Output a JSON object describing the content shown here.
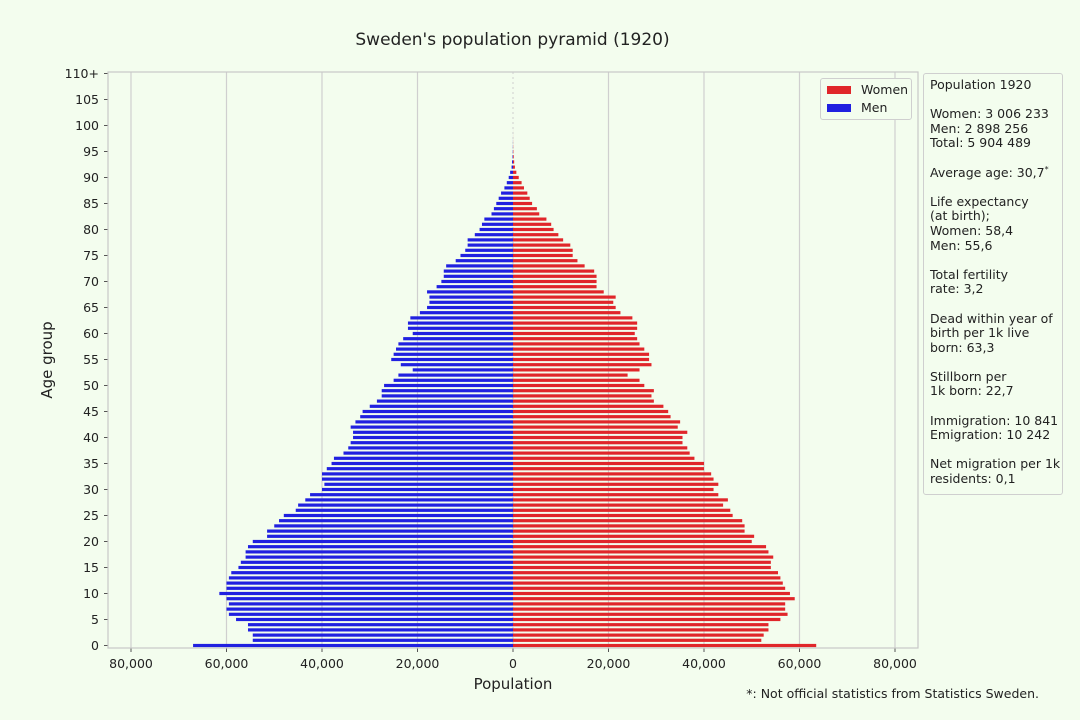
{
  "chart_data": {
    "type": "bar",
    "orientation": "horizontal",
    "title": "Sweden's population pyramid (1920)",
    "xlabel": "Population",
    "ylabel": "Age group",
    "xlim": [
      -85000,
      85000
    ],
    "x_ticks": [
      -80000,
      -60000,
      -40000,
      -20000,
      0,
      20000,
      40000,
      60000,
      80000
    ],
    "x_tick_labels": [
      "80,000",
      "60,000",
      "40,000",
      "20,000",
      "0",
      "20,000",
      "40,000",
      "60,000",
      "80,000"
    ],
    "y_tick_labels": [
      "0",
      "5",
      "10",
      "15",
      "20",
      "25",
      "30",
      "35",
      "40",
      "45",
      "50",
      "55",
      "60",
      "65",
      "70",
      "75",
      "80",
      "85",
      "90",
      "95",
      "100",
      "105",
      "110+"
    ],
    "grid": "vertical",
    "legend_position": "top-right",
    "series": [
      {
        "name": "Women",
        "color": "#e0262a",
        "values": [
          63500,
          52000,
          52500,
          53500,
          53500,
          56000,
          57500,
          57000,
          57000,
          59000,
          58000,
          57000,
          56500,
          56000,
          55500,
          54000,
          54000,
          54500,
          53500,
          53000,
          50000,
          50500,
          48500,
          48500,
          48000,
          46000,
          45500,
          44000,
          45000,
          43000,
          42000,
          43000,
          42000,
          41500,
          40000,
          40000,
          38000,
          37000,
          36500,
          35500,
          35500,
          36500,
          34500,
          35000,
          33000,
          32500,
          31500,
          29500,
          29000,
          29500,
          27500,
          26500,
          24000,
          26500,
          29000,
          28500,
          28500,
          27500,
          26500,
          26000,
          25500,
          26000,
          26000,
          25000,
          22500,
          21500,
          21000,
          21500,
          19000,
          17500,
          17500,
          17500,
          17000,
          15000,
          13500,
          12500,
          12500,
          12000,
          10500,
          9500,
          8500,
          8000,
          7000,
          5500,
          5000,
          4000,
          3500,
          3000,
          2300,
          1800,
          1200,
          700,
          400,
          250,
          150,
          80,
          40,
          20,
          10,
          5,
          0,
          0,
          0,
          0,
          0,
          0,
          0,
          0,
          0,
          0,
          0
        ]
      },
      {
        "name": "Men",
        "color": "#2020e0",
        "values": [
          67000,
          54500,
          54500,
          55500,
          55500,
          58000,
          59500,
          60000,
          59500,
          60000,
          61500,
          60000,
          60000,
          59500,
          59000,
          57500,
          57000,
          56000,
          56000,
          55500,
          54500,
          51500,
          51500,
          50000,
          49000,
          48000,
          45500,
          45000,
          43500,
          42500,
          40000,
          39500,
          40000,
          40000,
          39000,
          38000,
          37500,
          35500,
          34500,
          34000,
          33500,
          33500,
          34000,
          33000,
          32000,
          31500,
          30000,
          28500,
          27500,
          27500,
          27000,
          25000,
          24000,
          21000,
          23500,
          25500,
          25000,
          24500,
          24000,
          23000,
          21000,
          22000,
          22000,
          21500,
          19500,
          18000,
          17500,
          17500,
          18000,
          16000,
          15000,
          14500,
          14500,
          14000,
          12000,
          11000,
          10000,
          9500,
          9500,
          8000,
          7000,
          6500,
          6000,
          4500,
          4000,
          3500,
          3000,
          2500,
          1800,
          1300,
          900,
          600,
          300,
          200,
          100,
          50,
          30,
          15,
          5,
          2,
          0,
          0,
          0,
          0,
          0,
          0,
          0,
          0,
          0,
          0,
          0
        ]
      }
    ]
  },
  "legend": {
    "women": "Women",
    "men": "Men"
  },
  "info": {
    "header": "Population 1920",
    "women": "Women: 3 006 233",
    "men": "Men: 2 898 256",
    "total": "Total: 5 904 489",
    "avg_age": "Average age: 30,7",
    "avg_age_mark": "*",
    "life_exp_1": "Life expectancy",
    "life_exp_2": "(at birth);",
    "life_women": "Women: 58,4",
    "life_men": "Men: 55,6",
    "fertility_1": "Total fertility",
    "fertility_2": "rate: 3,2",
    "infant_1": "Dead within year of",
    "infant_2": "birth per 1k live",
    "infant_3": "born: 63,3",
    "stillborn_1": "Stillborn per",
    "stillborn_2": "1k born: 22,7",
    "immigration": "Immigration: 10 841",
    "emigration": "Emigration: 10 242",
    "netmig_1": "Net migration per 1k",
    "netmig_2": "residents: 0,1"
  },
  "footnote": "*: Not official statistics from Statistics Sweden."
}
